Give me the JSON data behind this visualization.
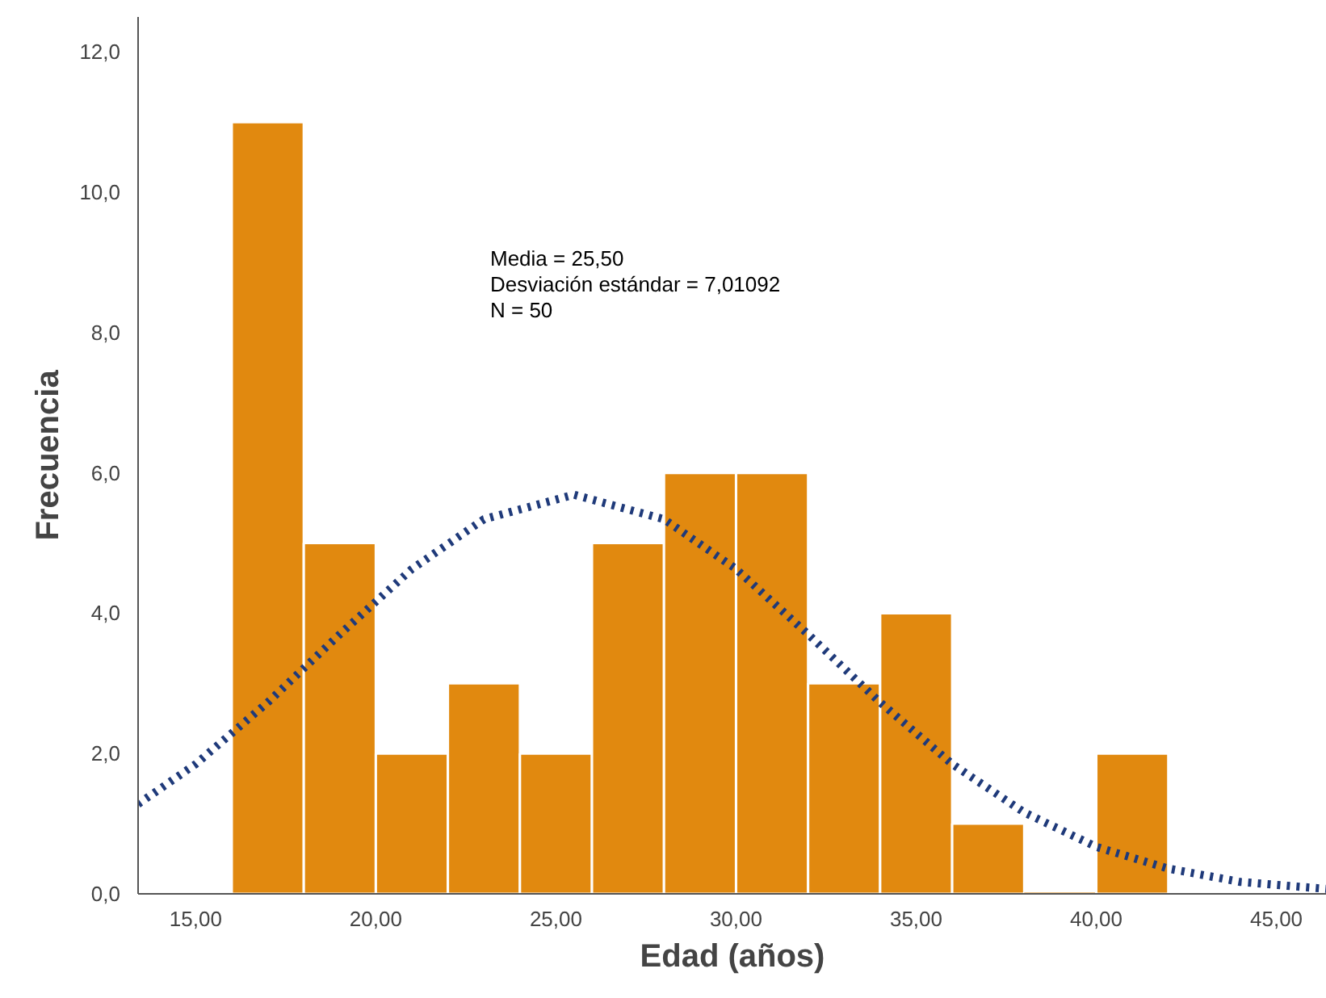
{
  "chart_data": {
    "type": "histogram",
    "xlabel": "Edad (años)",
    "ylabel": "Frecuencia",
    "bins": [
      16,
      18,
      20,
      22,
      24,
      26,
      28,
      30,
      32,
      34,
      36,
      38,
      40,
      42
    ],
    "values": [
      11,
      5,
      2,
      3,
      2,
      5,
      6,
      6,
      3,
      4,
      1,
      0,
      2
    ],
    "color": "#e1890f",
    "series": [
      {
        "type": "line",
        "color": "#1f3a7a",
        "line_style": "dotted",
        "x": [
          13.4,
          15,
          17,
          19,
          21,
          23,
          25.5,
          28,
          30,
          32,
          34,
          36,
          38,
          40,
          42,
          44,
          46.4
        ],
        "values": [
          1.28,
          1.85,
          2.73,
          3.7,
          4.63,
          5.34,
          5.69,
          5.34,
          4.63,
          3.7,
          2.73,
          1.85,
          1.16,
          0.67,
          0.36,
          0.17,
          0.07
        ]
      }
    ],
    "xlim": [
      13.4,
      46.4
    ],
    "ylim": [
      0,
      12.5
    ],
    "xticks": [
      {
        "value": 15,
        "label": "15,00"
      },
      {
        "value": 20,
        "label": "20,00"
      },
      {
        "value": 25,
        "label": "25,00"
      },
      {
        "value": 30,
        "label": "30,00"
      },
      {
        "value": 35,
        "label": "35,00"
      },
      {
        "value": 40,
        "label": "40,00"
      },
      {
        "value": 45,
        "label": "45,00"
      }
    ],
    "yticks": [
      {
        "value": 0,
        "label": "0,0"
      },
      {
        "value": 2,
        "label": "2,0"
      },
      {
        "value": 4,
        "label": "4,0"
      },
      {
        "value": 6,
        "label": "6,0"
      },
      {
        "value": 8,
        "label": "8,0"
      },
      {
        "value": 10,
        "label": "10,0"
      },
      {
        "value": 12,
        "label": "12,0"
      }
    ],
    "annotations": [
      "Media = 25,50",
      "Desviación estándar = 7,01092",
      "N = 50"
    ],
    "grid": false
  }
}
